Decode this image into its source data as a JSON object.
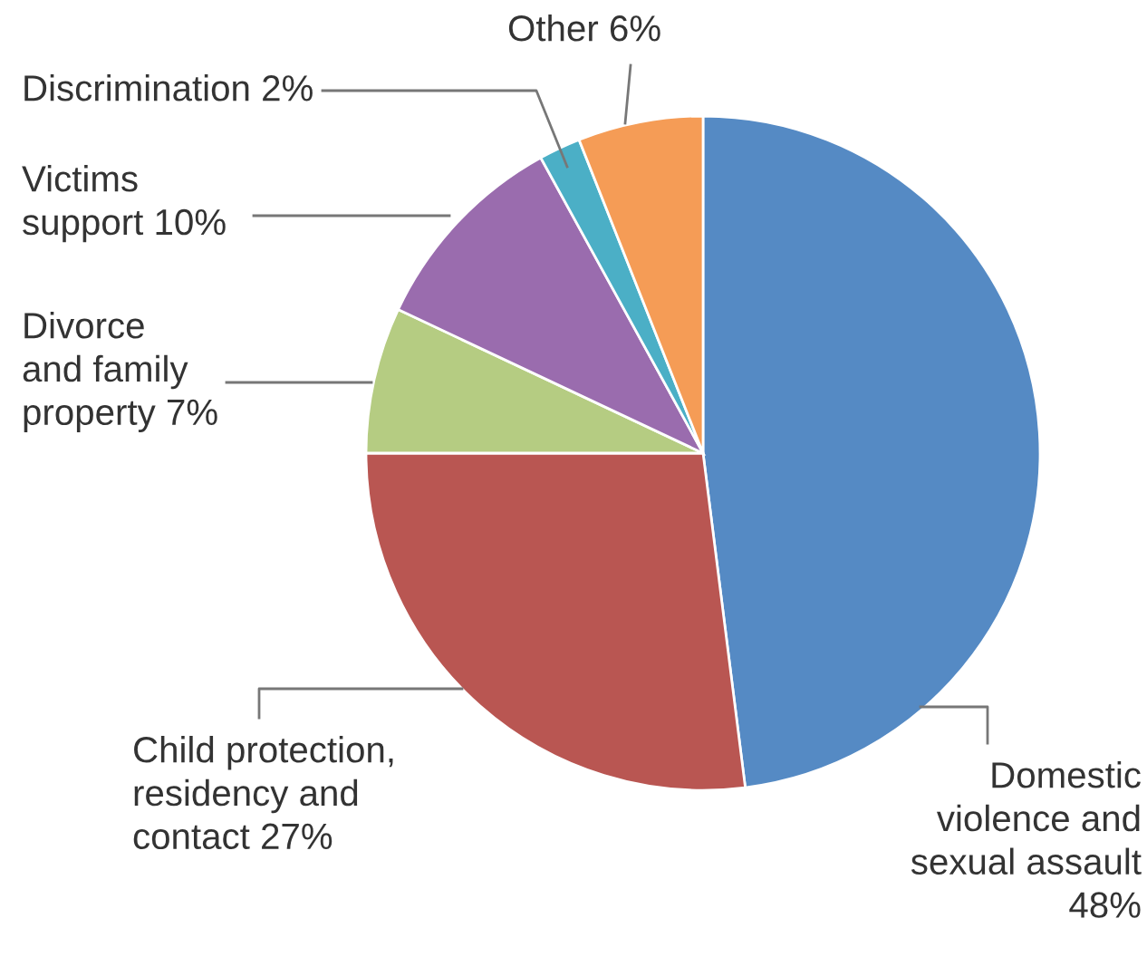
{
  "chart_data": {
    "type": "pie",
    "categories": [
      "Domestic\nviolence and\nsexual assault\n",
      "Child protection,\nresidency and\ncontact",
      "Divorce\nand family\nproperty",
      "Victims\nsupport",
      "Discrimination",
      "Other"
    ],
    "values": [
      48,
      27,
      7,
      10,
      2,
      6
    ],
    "colors": [
      "#558ac4",
      "#b95652",
      "#b5cc82",
      "#9a6cae",
      "#4bafc6",
      "#f59c56"
    ],
    "value_labels": [
      "48%",
      "27%",
      "7%",
      "10%",
      "2%",
      "6%"
    ],
    "legend": false
  }
}
